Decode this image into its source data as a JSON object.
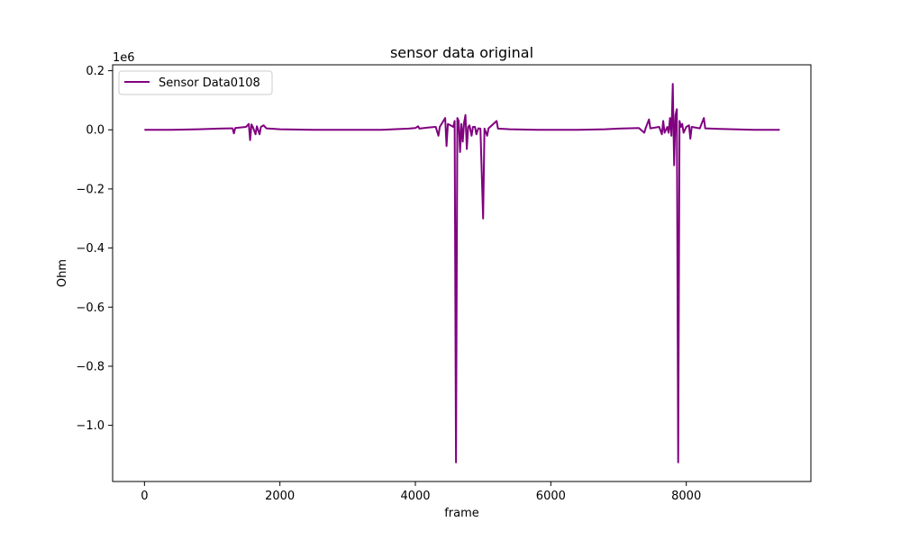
{
  "chart_data": {
    "type": "line",
    "title": "sensor data original",
    "xlabel": "frame",
    "ylabel": "Ohm",
    "y_offset_text": "1e6",
    "xlim": [
      -470,
      9840
    ],
    "ylim": [
      -1.19,
      0.22
    ],
    "x_ticks": [
      0,
      2000,
      4000,
      6000,
      8000
    ],
    "x_tick_labels": [
      "0",
      "2000",
      "4000",
      "6000",
      "8000"
    ],
    "y_ticks": [
      0.2,
      0.0,
      -0.2,
      -0.4,
      -0.6,
      -0.8,
      -1.0
    ],
    "y_tick_labels": [
      "0.2",
      "0.0",
      "−0.2",
      "−0.4",
      "−0.6",
      "−0.8",
      "−1.0"
    ],
    "grid": false,
    "legend_position": "upper-left",
    "series": [
      {
        "name": "Sensor Data0108",
        "color": "#800080",
        "points": [
          [
            0,
            0.0
          ],
          [
            400,
            0.0
          ],
          [
            800,
            0.002
          ],
          [
            1100,
            0.004
          ],
          [
            1300,
            0.005
          ],
          [
            1320,
            -0.012
          ],
          [
            1340,
            0.006
          ],
          [
            1500,
            0.01
          ],
          [
            1540,
            0.02
          ],
          [
            1560,
            -0.035
          ],
          [
            1580,
            0.018
          ],
          [
            1600,
            0.01
          ],
          [
            1640,
            -0.015
          ],
          [
            1660,
            0.012
          ],
          [
            1700,
            -0.015
          ],
          [
            1720,
            0.01
          ],
          [
            1760,
            0.015
          ],
          [
            1800,
            0.005
          ],
          [
            2000,
            0.002
          ],
          [
            2500,
            0.0
          ],
          [
            3000,
            0.0
          ],
          [
            3500,
            0.0
          ],
          [
            3900,
            0.004
          ],
          [
            4000,
            0.006
          ],
          [
            4040,
            0.012
          ],
          [
            4060,
            0.004
          ],
          [
            4200,
            0.008
          ],
          [
            4300,
            0.01
          ],
          [
            4340,
            -0.02
          ],
          [
            4360,
            0.01
          ],
          [
            4440,
            0.04
          ],
          [
            4460,
            -0.055
          ],
          [
            4480,
            0.02
          ],
          [
            4520,
            0.015
          ],
          [
            4560,
            0.01
          ],
          [
            4580,
            0.03
          ],
          [
            4600,
            -1.125
          ],
          [
            4620,
            0.04
          ],
          [
            4640,
            0.03
          ],
          [
            4660,
            -0.075
          ],
          [
            4680,
            0.02
          ],
          [
            4700,
            -0.04
          ],
          [
            4720,
            0.025
          ],
          [
            4740,
            0.05
          ],
          [
            4760,
            -0.065
          ],
          [
            4780,
            0.01
          ],
          [
            4800,
            0.015
          ],
          [
            4830,
            -0.02
          ],
          [
            4850,
            0.01
          ],
          [
            4880,
            0.01
          ],
          [
            4900,
            -0.015
          ],
          [
            4930,
            0.005
          ],
          [
            4960,
            0.004
          ],
          [
            5000,
            -0.3
          ],
          [
            5020,
            0.004
          ],
          [
            5060,
            -0.02
          ],
          [
            5080,
            0.005
          ],
          [
            5200,
            0.03
          ],
          [
            5220,
            0.004
          ],
          [
            5400,
            0.002
          ],
          [
            5800,
            0.0
          ],
          [
            6400,
            0.0
          ],
          [
            6800,
            0.002
          ],
          [
            7000,
            0.004
          ],
          [
            7300,
            0.006
          ],
          [
            7380,
            -0.01
          ],
          [
            7400,
            0.006
          ],
          [
            7450,
            0.035
          ],
          [
            7470,
            0.005
          ],
          [
            7600,
            0.01
          ],
          [
            7640,
            -0.015
          ],
          [
            7660,
            0.03
          ],
          [
            7680,
            -0.01
          ],
          [
            7720,
            0.01
          ],
          [
            7740,
            -0.01
          ],
          [
            7760,
            0.04
          ],
          [
            7780,
            -0.02
          ],
          [
            7800,
            0.155
          ],
          [
            7820,
            -0.12
          ],
          [
            7840,
            0.05
          ],
          [
            7860,
            0.07
          ],
          [
            7880,
            -1.125
          ],
          [
            7900,
            0.03
          ],
          [
            7920,
            0.01
          ],
          [
            7940,
            0.02
          ],
          [
            7960,
            -0.01
          ],
          [
            8000,
            0.01
          ],
          [
            8040,
            0.015
          ],
          [
            8060,
            -0.03
          ],
          [
            8080,
            0.01
          ],
          [
            8200,
            0.005
          ],
          [
            8260,
            0.04
          ],
          [
            8280,
            0.005
          ],
          [
            8500,
            0.003
          ],
          [
            9000,
            0.0
          ],
          [
            9380,
            0.0
          ]
        ]
      }
    ]
  }
}
